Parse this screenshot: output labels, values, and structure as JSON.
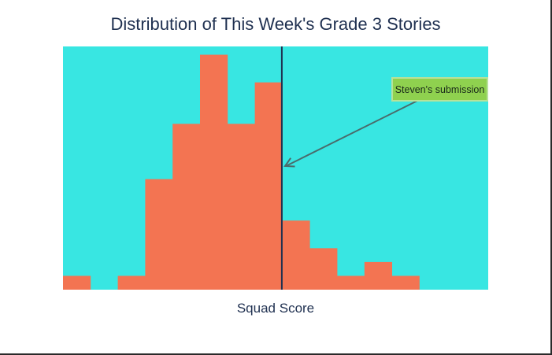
{
  "chart_data": {
    "type": "bar",
    "title": "Distribution of This Week's Grade 3 Stories",
    "xlabel": "Squad Score",
    "ylabel": "",
    "grid": false,
    "bins": 16,
    "values": [
      1,
      0,
      1,
      8,
      12,
      17,
      12,
      15,
      5,
      3,
      1,
      2,
      1,
      0,
      0,
      0
    ],
    "ylim": [
      0,
      17.6
    ],
    "marker": {
      "bin_position": 8,
      "label": "Steven's submission"
    },
    "colors": {
      "plot_background": "#38e6e2",
      "bar": "#f37452",
      "marker_line": "#1f3050",
      "annotation_box": "#8fd14f",
      "annotation_border": "#b7e29a",
      "arrow": "#4a6b6b"
    }
  }
}
